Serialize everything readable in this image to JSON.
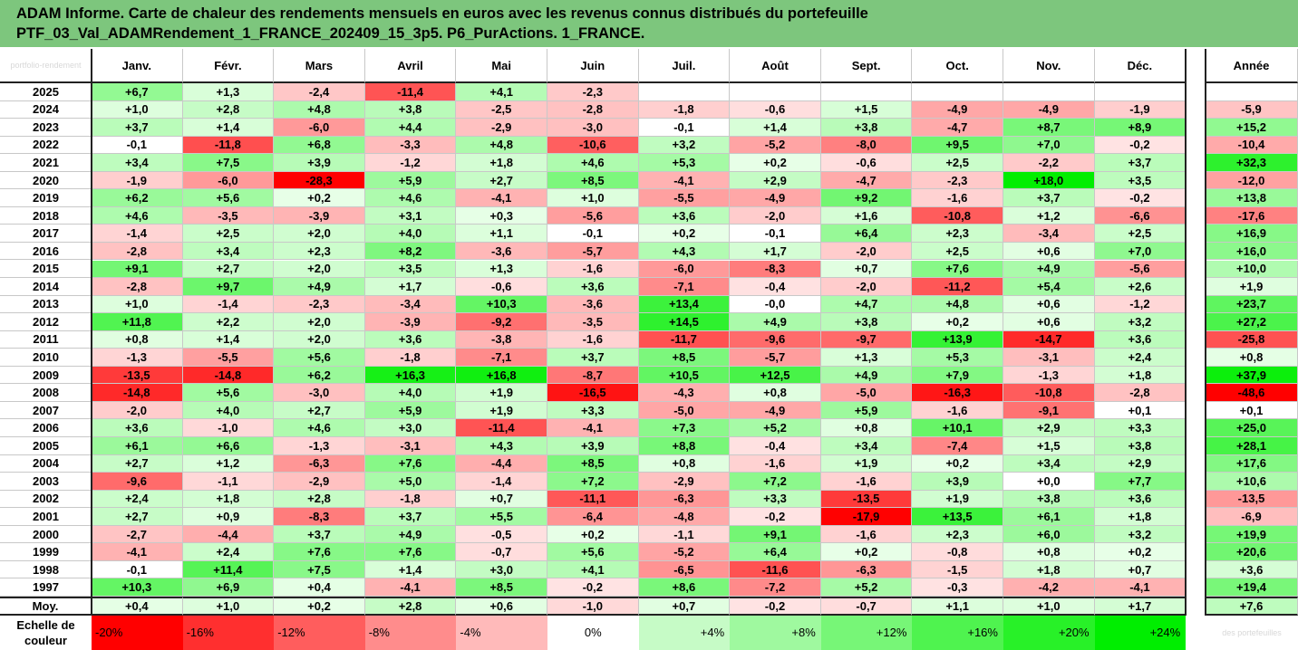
{
  "title_lines": [
    "ADAM Informe. Carte de chaleur des rendements mensuels en euros avec les revenus connus distribués du portefeuille",
    "PTF_03_Val_ADAMRendement_1_FRANCE_202409_15_3p5. P6_PurActions. 1_FRANCE."
  ],
  "watermark_topleft": "portfolio-rendement",
  "watermark_bottomright": "des portefeuilles",
  "chart_data": {
    "type": "heatmap",
    "columns": [
      "Janv.",
      "Févr.",
      "Mars",
      "Avril",
      "Mai",
      "Juin",
      "Juil.",
      "Août",
      "Sept.",
      "Oct.",
      "Nov.",
      "Déc."
    ],
    "annual_column": "Année",
    "rows": [
      {
        "year": "2025",
        "months": [
          "+6,7",
          "+1,3",
          "-2,4",
          "-11,4",
          "+4,1",
          "-2,3",
          "",
          "",
          "",
          "",
          "",
          ""
        ],
        "annual": ""
      },
      {
        "year": "2024",
        "months": [
          "+1,0",
          "+2,8",
          "+4,8",
          "+3,8",
          "-2,5",
          "-2,8",
          "-1,8",
          "-0,6",
          "+1,5",
          "-4,9",
          "-4,9",
          "-1,9"
        ],
        "annual": "-5,9"
      },
      {
        "year": "2023",
        "months": [
          "+3,7",
          "+1,4",
          "-6,0",
          "+4,4",
          "-2,9",
          "-3,0",
          "-0,1",
          "+1,4",
          "+3,8",
          "-4,7",
          "+8,7",
          "+8,9"
        ],
        "annual": "+15,2"
      },
      {
        "year": "2022",
        "months": [
          "-0,1",
          "-11,8",
          "+6,8",
          "-3,3",
          "+4,8",
          "-10,6",
          "+3,2",
          "-5,2",
          "-8,0",
          "+9,5",
          "+7,0",
          "-0,2"
        ],
        "annual": "-10,4"
      },
      {
        "year": "2021",
        "months": [
          "+3,4",
          "+7,5",
          "+3,9",
          "-1,2",
          "+1,8",
          "+4,6",
          "+5,3",
          "+0,2",
          "-0,6",
          "+2,5",
          "-2,2",
          "+3,7"
        ],
        "annual": "+32,3"
      },
      {
        "year": "2020",
        "months": [
          "-1,9",
          "-6,0",
          "-28,3",
          "+5,9",
          "+2,7",
          "+8,5",
          "-4,1",
          "+2,9",
          "-4,7",
          "-2,3",
          "+18,0",
          "+3,5"
        ],
        "annual": "-12,0"
      },
      {
        "year": "2019",
        "months": [
          "+6,2",
          "+5,6",
          "+0,2",
          "+4,6",
          "-4,1",
          "+1,0",
          "-5,5",
          "-4,9",
          "+9,2",
          "-1,6",
          "+3,7",
          "-0,2"
        ],
        "annual": "+13,8"
      },
      {
        "year": "2018",
        "months": [
          "+4,6",
          "-3,5",
          "-3,9",
          "+3,1",
          "+0,3",
          "-5,6",
          "+3,6",
          "-2,0",
          "+1,6",
          "-10,8",
          "+1,2",
          "-6,6"
        ],
        "annual": "-17,6"
      },
      {
        "year": "2017",
        "months": [
          "-1,4",
          "+2,5",
          "+2,0",
          "+4,0",
          "+1,1",
          "-0,1",
          "+0,2",
          "-0,1",
          "+6,4",
          "+2,3",
          "-3,4",
          "+2,5"
        ],
        "annual": "+16,9"
      },
      {
        "year": "2016",
        "months": [
          "-2,8",
          "+3,4",
          "+2,3",
          "+8,2",
          "-3,6",
          "-5,7",
          "+4,3",
          "+1,7",
          "-2,0",
          "+2,5",
          "+0,6",
          "+7,0"
        ],
        "annual": "+16,0"
      },
      {
        "year": "2015",
        "months": [
          "+9,1",
          "+2,7",
          "+2,0",
          "+3,5",
          "+1,3",
          "-1,6",
          "-6,0",
          "-8,3",
          "+0,7",
          "+7,6",
          "+4,9",
          "-5,6"
        ],
        "annual": "+10,0"
      },
      {
        "year": "2014",
        "months": [
          "-2,8",
          "+9,7",
          "+4,9",
          "+1,7",
          "-0,6",
          "+3,6",
          "-7,1",
          "-0,4",
          "-2,0",
          "-11,2",
          "+5,4",
          "+2,6"
        ],
        "annual": "+1,9"
      },
      {
        "year": "2013",
        "months": [
          "+1,0",
          "-1,4",
          "-2,3",
          "-3,4",
          "+10,3",
          "-3,6",
          "+13,4",
          "-0,0",
          "+4,7",
          "+4,8",
          "+0,6",
          "-1,2"
        ],
        "annual": "+23,7"
      },
      {
        "year": "2012",
        "months": [
          "+11,8",
          "+2,2",
          "+2,0",
          "-3,9",
          "-9,2",
          "-3,5",
          "+14,5",
          "+4,9",
          "+3,8",
          "+0,2",
          "+0,6",
          "+3,2"
        ],
        "annual": "+27,2"
      },
      {
        "year": "2011",
        "months": [
          "+0,8",
          "+1,4",
          "+2,0",
          "+3,6",
          "-3,8",
          "-1,6",
          "-11,7",
          "-9,6",
          "-9,7",
          "+13,9",
          "-14,7",
          "+3,6"
        ],
        "annual": "-25,8"
      },
      {
        "year": "2010",
        "months": [
          "-1,3",
          "-5,5",
          "+5,6",
          "-1,8",
          "-7,1",
          "+3,7",
          "+8,5",
          "-5,7",
          "+1,3",
          "+5,3",
          "-3,1",
          "+2,4"
        ],
        "annual": "+0,8"
      },
      {
        "year": "2009",
        "months": [
          "-13,5",
          "-14,8",
          "+6,2",
          "+16,3",
          "+16,8",
          "-8,7",
          "+10,5",
          "+12,5",
          "+4,9",
          "+7,9",
          "-1,3",
          "+1,8"
        ],
        "annual": "+37,9"
      },
      {
        "year": "2008",
        "months": [
          "-14,8",
          "+5,6",
          "-3,0",
          "+4,0",
          "+1,9",
          "-16,5",
          "-4,3",
          "+0,8",
          "-5,0",
          "-16,3",
          "-10,8",
          "-2,8"
        ],
        "annual": "-48,6"
      },
      {
        "year": "2007",
        "months": [
          "-2,0",
          "+4,0",
          "+2,7",
          "+5,9",
          "+1,9",
          "+3,3",
          "-5,0",
          "-4,9",
          "+5,9",
          "-1,6",
          "-9,1",
          "+0,1"
        ],
        "annual": "+0,1"
      },
      {
        "year": "2006",
        "months": [
          "+3,6",
          "-1,0",
          "+4,6",
          "+3,0",
          "-11,4",
          "-4,1",
          "+7,3",
          "+5,2",
          "+0,8",
          "+10,1",
          "+2,9",
          "+3,3"
        ],
        "annual": "+25,0"
      },
      {
        "year": "2005",
        "months": [
          "+6,1",
          "+6,6",
          "-1,3",
          "-3,1",
          "+4,3",
          "+3,9",
          "+8,8",
          "-0,4",
          "+3,4",
          "-7,4",
          "+1,5",
          "+3,8"
        ],
        "annual": "+28,1"
      },
      {
        "year": "2004",
        "months": [
          "+2,7",
          "+1,2",
          "-6,3",
          "+7,6",
          "-4,4",
          "+8,5",
          "+0,8",
          "-1,6",
          "+1,9",
          "+0,2",
          "+3,4",
          "+2,9"
        ],
        "annual": "+17,6"
      },
      {
        "year": "2003",
        "months": [
          "-9,6",
          "-1,1",
          "-2,9",
          "+5,0",
          "-1,4",
          "+7,2",
          "-2,9",
          "+7,2",
          "-1,6",
          "+3,9",
          "+0,0",
          "+7,7"
        ],
        "annual": "+10,6"
      },
      {
        "year": "2002",
        "months": [
          "+2,4",
          "+1,8",
          "+2,8",
          "-1,8",
          "+0,7",
          "-11,1",
          "-6,3",
          "+3,3",
          "-13,5",
          "+1,9",
          "+3,8",
          "+3,6"
        ],
        "annual": "-13,5"
      },
      {
        "year": "2001",
        "months": [
          "+2,7",
          "+0,9",
          "-8,3",
          "+3,7",
          "+5,5",
          "-6,4",
          "-4,8",
          "-0,2",
          "-17,9",
          "+13,5",
          "+6,1",
          "+1,8"
        ],
        "annual": "-6,9"
      },
      {
        "year": "2000",
        "months": [
          "-2,7",
          "-4,4",
          "+3,7",
          "+4,9",
          "-0,5",
          "+0,2",
          "-1,1",
          "+9,1",
          "-1,6",
          "+2,3",
          "+6,0",
          "+3,2"
        ],
        "annual": "+19,9"
      },
      {
        "year": "1999",
        "months": [
          "-4,1",
          "+2,4",
          "+7,6",
          "+7,6",
          "-0,7",
          "+5,6",
          "-5,2",
          "+6,4",
          "+0,2",
          "-0,8",
          "+0,8",
          "+0,2"
        ],
        "annual": "+20,6"
      },
      {
        "year": "1998",
        "months": [
          "-0,1",
          "+11,4",
          "+7,5",
          "+1,4",
          "+3,0",
          "+4,1",
          "-6,5",
          "-11,6",
          "-6,3",
          "-1,5",
          "+1,8",
          "+0,7"
        ],
        "annual": "+3,6"
      },
      {
        "year": "1997",
        "months": [
          "+10,3",
          "+6,9",
          "+0,4",
          "-4,1",
          "+8,5",
          "-0,2",
          "+8,6",
          "-7,2",
          "+5,2",
          "-0,3",
          "-4,2",
          "-4,1"
        ],
        "annual": "+19,4"
      }
    ],
    "average": {
      "label": "Moy.",
      "months": [
        "+0,4",
        "+1,0",
        "+0,2",
        "+2,8",
        "+0,6",
        "-1,0",
        "+0,7",
        "-0,2",
        "-0,7",
        "+1,1",
        "+1,0",
        "+1,7"
      ],
      "annual": "+7,6"
    },
    "color_scale": {
      "label_line1": "Echelle de",
      "label_line2": "couleur",
      "stops": [
        "-20%",
        "-16%",
        "-12%",
        "-8%",
        "-4%",
        "0%",
        "+4%",
        "+8%",
        "+12%",
        "+16%",
        "+20%",
        "+24%"
      ],
      "stop_values": [
        -20,
        -16,
        -12,
        -8,
        -4,
        0,
        4,
        8,
        12,
        16,
        20,
        24
      ],
      "negative_color": "#ff0000",
      "positive_color": "#00ee00",
      "neutral_color": "#ffffff"
    }
  }
}
